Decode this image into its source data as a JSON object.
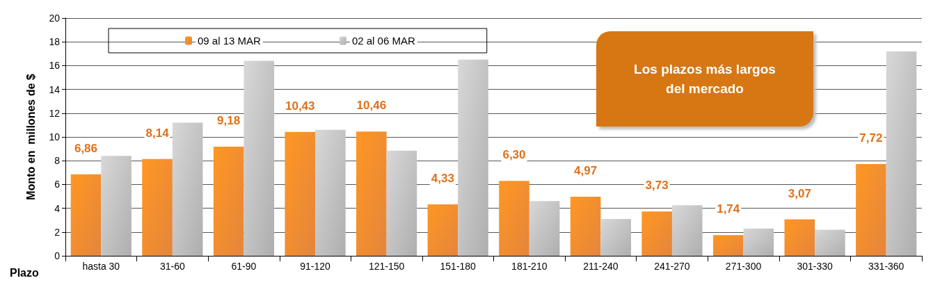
{
  "chart_data": {
    "type": "bar",
    "xlabel": "Plazo",
    "ylabel": "Monto en  millones de $",
    "categories": [
      "hasta 30",
      "31-60",
      "61-90",
      "91-120",
      "121-150",
      "151-180",
      "181-210",
      "211-240",
      "241-270",
      "271-300",
      "301-330",
      "331-360"
    ],
    "series": [
      {
        "name": "09 al 13 MAR",
        "color": "#e0701a",
        "values": [
          6.86,
          8.14,
          9.18,
          10.43,
          10.46,
          4.33,
          6.3,
          4.97,
          3.73,
          1.74,
          3.07,
          7.72
        ],
        "value_labels": [
          "6,86",
          "8,14",
          "9,18",
          "10,43",
          "10,46",
          "4,33",
          "6,30",
          "4,97",
          "3,73",
          "1,74",
          "3,07",
          "7,72"
        ]
      },
      {
        "name": "02 al 06 MAR",
        "color": "#a0a0a0",
        "values": [
          8.4,
          11.2,
          16.4,
          10.6,
          8.85,
          16.5,
          4.6,
          3.1,
          4.25,
          2.3,
          2.2,
          17.2
        ]
      }
    ],
    "ylim": [
      0,
      20
    ],
    "yticks": [
      0,
      2,
      4,
      6,
      8,
      10,
      12,
      14,
      16,
      18,
      20
    ],
    "grid": "y",
    "legend": "top",
    "annotations": [
      "Los plazos más largos del mercado"
    ]
  }
}
